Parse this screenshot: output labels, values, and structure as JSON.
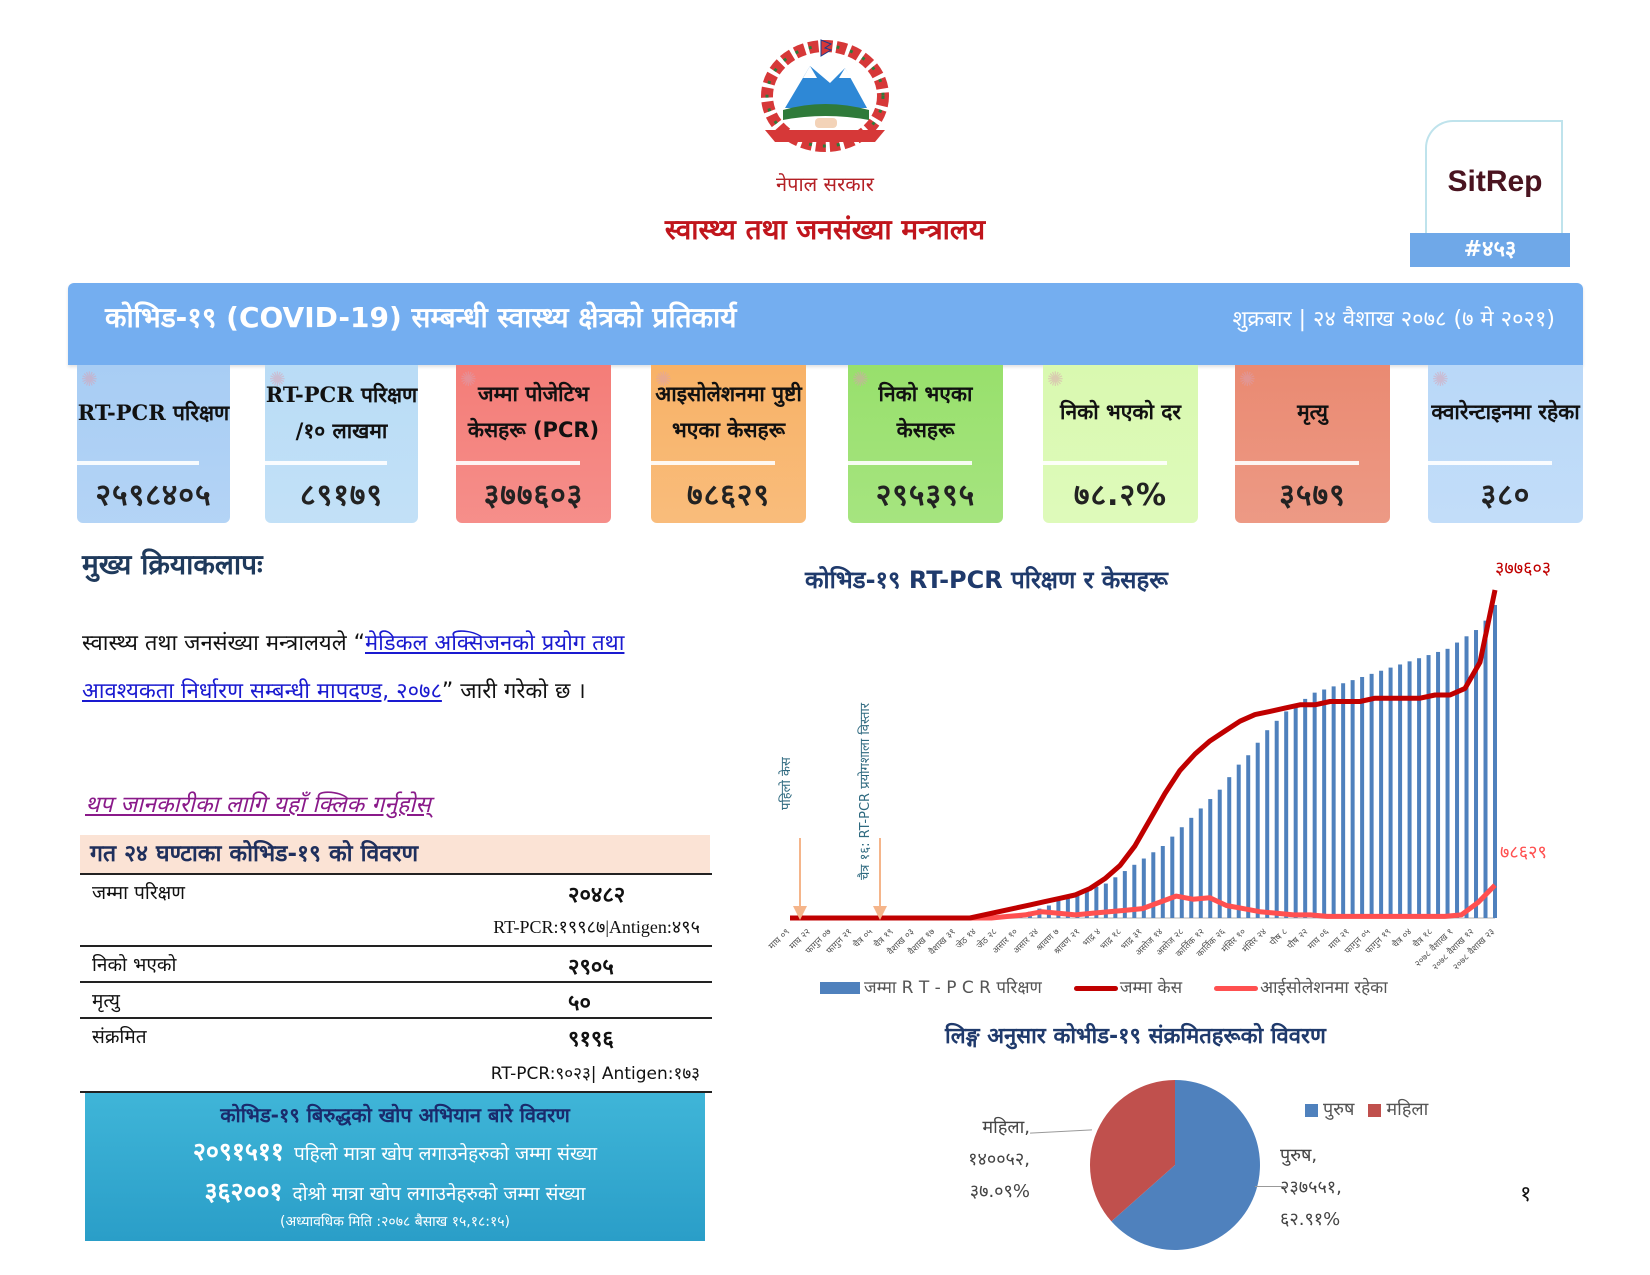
{
  "header": {
    "gov_name": "नेपाल सरकार",
    "ministry": "स्वास्थ्य तथा जनसंख्या मन्त्रालय",
    "sitrep_label": "SitRep",
    "sitrep_number": "#४५३",
    "banner_title": "कोभिड-१९ (COVID-19) सम्बन्धी स्वास्थ्य क्षेत्रको प्रतिकार्य",
    "banner_date": "शुक्रबार | २४ वैशाख २०७८ (७ मे २०२१)"
  },
  "stats": [
    {
      "label": "RT-PCR परिक्षण",
      "value": "२५९८४०५",
      "color": "#a8cdf4",
      "serif": true
    },
    {
      "label": "RT-PCR परिक्षण /१० लाखमा",
      "value": "८९१७९",
      "color": "#b9dcf6",
      "serif": true
    },
    {
      "label": "जम्मा पोजेटिभ केसहरू (PCR)",
      "value": "३७७६०३",
      "color": "#f47d78",
      "serif": false
    },
    {
      "label": "आइसोलेशनमा पुष्टी भएका केसहरू",
      "value": "७८६२९",
      "color": "#f8b267",
      "serif": false
    },
    {
      "label": "निको भएका केसहरू",
      "value": "२९५३९५",
      "color": "#98e06c",
      "serif": false
    },
    {
      "label": "निको भएको दर",
      "value": "७८.२%",
      "color": "#d9f9b0",
      "serif": false
    },
    {
      "label": "मृत्यु",
      "value": "३५७९",
      "color": "#ea8a72",
      "serif": false
    },
    {
      "label": "क्वारेन्टाइनमा रहेका",
      "value": "३८०",
      "color": "#b9d8f8",
      "serif": false
    }
  ],
  "activities": {
    "heading": "मुख्य क्रियाकलापः",
    "text_before": "स्वास्थ्य तथा जनसंख्या मन्त्रालयले “",
    "link_text": "मेडिकल अक्सिजनको प्रयोग तथा आवश्यकता निर्धारण सम्बन्धी मापदण्ड, २०७८",
    "text_after": "” जारी गरेको छ ।",
    "more_link": "थप जानकारीका लागि यहाँ क्लिक गर्नुहोस्"
  },
  "last24h": {
    "heading": "गत २४ घण्टाका कोभिड-१९ को विवरण",
    "rows": [
      {
        "label": "जम्मा परिक्षण",
        "value": "२०४८२",
        "sub": "RT-PCR:१९९८७|Antigen:४९५"
      },
      {
        "label": "निको भएको",
        "value": "२९०५",
        "sub": ""
      },
      {
        "label": "मृत्यु",
        "value": "५०",
        "sub": ""
      },
      {
        "label": "संक्रमित",
        "value": "९१९६",
        "sub": "RT-PCR:९०२३| Antigen:१७३"
      }
    ]
  },
  "vaccine": {
    "title": "कोभिड-१९ बिरुद्धको खोप अभियान बारे विवरण",
    "first_dose_value": "२०९१५११",
    "first_dose_label": "पहिलो मात्रा खोप लगाउनेहरुको जम्मा संख्या",
    "second_dose_value": "३६२००१",
    "second_dose_label": "दोश्रो मात्रा खोप लगाउनेहरुको जम्मा संख्या",
    "updated": "(अध्यावधिक मिति :२०७८ बैसाख १५,१८:१५)"
  },
  "chart_data": [
    {
      "type": "bar+line",
      "title": "कोभिड-१९ RT-PCR परिक्षण र केसहरू",
      "annotations": [
        "पहिलो केस",
        "चैत्र १६: RT-PCR प्रयोगशाला विस्तार"
      ],
      "end_labels": {
        "total_cases": "३७७६०३",
        "isolation": "७८६२९"
      },
      "categories": [
        "माघ ०९",
        "माघ २२",
        "फागुन ०७",
        "फागुन २१",
        "चैत्र ०५",
        "चैत्र १९",
        "वैशाख ०३",
        "वैशाख १७",
        "वैशाख ३१",
        "जेठ १४",
        "जेठ २८",
        "असार १०",
        "असार २४",
        "श्रावण ७",
        "श्रावण २१",
        "भाद्र ४",
        "भाद्र १८",
        "भाद्र ३१",
        "असोज १४",
        "असोज २८",
        "कार्तिक १२",
        "कार्तिक २६",
        "मंसिर १०",
        "मंसिर २४",
        "पौष ८",
        "पौष २२",
        "माघ ०६",
        "माघ २१",
        "फागुन ०५",
        "फागुन १९",
        "चैत्र ०४",
        "चैत्र १८",
        "२०७८ वैशाख १",
        "२०७८ वैशाख १२",
        "२०७८ वैशाख २३"
      ],
      "series": [
        {
          "name": "जम्मा RT-PCR परिक्षण",
          "type": "bar",
          "color": "#4f81bd",
          "values": [
            0,
            0,
            0,
            0,
            0,
            0,
            0,
            0,
            0,
            1,
            2,
            3,
            4,
            6,
            7,
            8,
            9,
            10,
            11,
            13,
            15,
            17,
            19,
            21,
            23,
            26,
            29,
            32,
            35,
            38,
            41,
            45,
            49,
            52,
            56,
            60,
            63,
            66,
            68,
            70,
            72,
            73,
            74,
            75,
            76,
            77,
            78,
            79,
            80,
            81,
            82,
            83,
            84,
            85,
            86,
            88,
            90,
            92,
            95,
            100
          ]
        },
        {
          "name": "जम्मा केस",
          "type": "line",
          "color": "#c00000",
          "values": [
            0,
            0,
            0,
            0,
            0,
            0,
            0,
            0,
            0,
            0,
            0,
            0,
            0,
            1,
            2,
            3,
            4,
            5,
            6,
            7,
            9,
            12,
            16,
            22,
            30,
            38,
            45,
            50,
            54,
            57,
            60,
            62,
            63,
            64,
            65,
            65,
            66,
            66,
            66,
            67,
            67,
            67,
            67,
            68,
            68,
            70,
            78,
            100
          ]
        },
        {
          "name": "आईसोलेशनमा रहेका",
          "type": "line",
          "color": "#ff5050",
          "values": [
            0,
            0,
            0,
            0,
            0,
            0,
            0,
            0,
            0,
            0,
            0,
            0,
            0,
            1,
            2,
            4,
            3,
            2,
            3,
            4,
            5,
            6,
            10,
            14,
            12,
            13,
            8,
            6,
            4,
            3,
            2,
            2,
            1,
            1,
            1,
            1,
            1,
            1,
            1,
            1,
            2,
            10,
            21
          ]
        }
      ]
    },
    {
      "type": "pie",
      "title": "लिङ्ग अनुसार कोभीड-१९ संक्रमितहरूको विवरण",
      "legend": [
        "पुरुष",
        "महिला"
      ],
      "slices": [
        {
          "name": "पुरुष",
          "value": 237551,
          "label": "पुरुष, २३७५५१, ६२.९१%",
          "pct": 62.91,
          "color": "#4f81bd"
        },
        {
          "name": "महिला",
          "value": 140052,
          "label": "महिला, १४००५२, ३७.०९%",
          "pct": 37.09,
          "color": "#c0504d"
        }
      ]
    }
  ],
  "chart_ui": {
    "title": "कोभिड-१९ RT-PCR परिक्षण र केसहरू",
    "annot1": "पहिलो केस",
    "annot2": "चैत्र १६: RT-PCR प्रयोगशाला विस्तार",
    "end_total": "३७७६०३",
    "end_iso": "७८६२९",
    "legend_bar": "जम्मा R T - P C R  परिक्षण",
    "legend_total": "जम्मा केस",
    "legend_iso": "आईसोलेशनमा रहेका",
    "pie_title": "लिङ्ग अनुसार कोभीड-१९ संक्रमितहरूको विवरण",
    "pie_legend_male": "पुरुष",
    "pie_legend_female": "महिला",
    "female_l1": "महिला,",
    "female_l2": "१४००५२,",
    "female_l3": "३७.०९%",
    "male_l1": "पुरुष,",
    "male_l2": "२३७५५१,",
    "male_l3": "६२.९१%"
  },
  "page_number": "१"
}
